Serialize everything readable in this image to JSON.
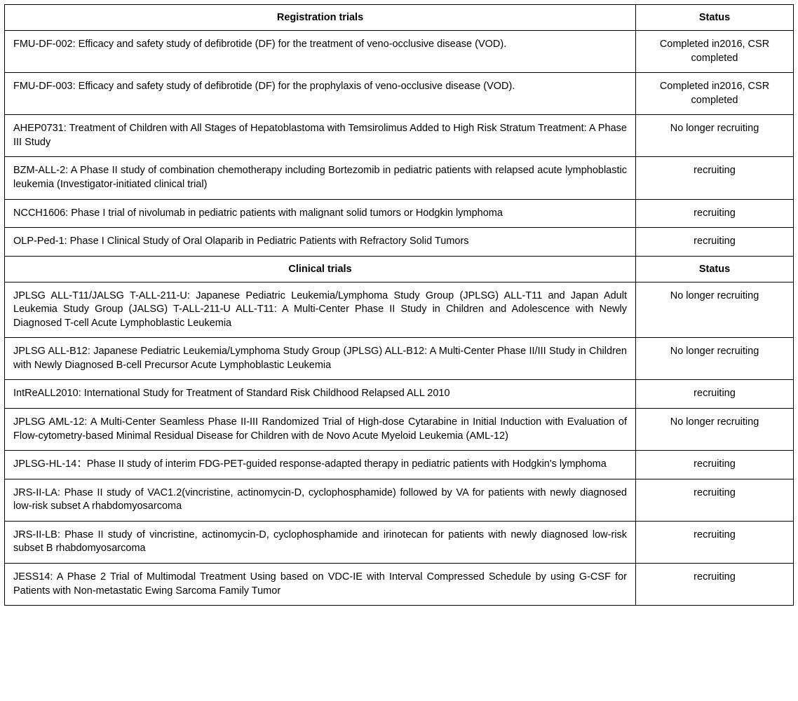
{
  "sections": [
    {
      "header_desc": "Registration trials",
      "header_status": "Status",
      "rows": [
        {
          "desc": "FMU-DF-002: Efficacy and safety study of defibrotide (DF) for the treatment of veno-occlusive disease (VOD).",
          "status": "Completed in2016, CSR completed"
        },
        {
          "desc": "FMU-DF-003: Efficacy and safety study of defibrotide (DF) for the prophylaxis of veno-occlusive disease (VOD).",
          "status": "Completed in2016, CSR completed"
        },
        {
          "desc": "AHEP0731: Treatment of Children with All Stages of Hepatoblastoma with Temsirolimus Added to High Risk Stratum Treatment: A Phase III Study",
          "status": "No longer recruiting"
        },
        {
          "desc": "BZM-ALL-2: A Phase II study of combination chemotherapy including Bortezomib in pediatric patients with relapsed acute lymphoblastic leukemia (Investigator-initiated clinical trial)",
          "status": "recruiting"
        },
        {
          "desc": "NCCH1606: Phase I trial of nivolumab in pediatric patients with malignant solid tumors or Hodgkin lymphoma",
          "status": "recruiting"
        },
        {
          "desc": "OLP-Ped-1: Phase I Clinical Study of Oral Olaparib in Pediatric Patients with Refractory Solid Tumors",
          "status": "recruiting"
        }
      ]
    },
    {
      "header_desc": "Clinical trials",
      "header_status": "Status",
      "rows": [
        {
          "desc": "JPLSG ALL-T11/JALSG T-ALL-211-U: Japanese Pediatric Leukemia/Lymphoma Study Group (JPLSG) ALL-T11 and Japan Adult Leukemia Study Group (JALSG) T-ALL-211-U ALL-T11: A Multi-Center Phase II Study in Children and Adolescence with Newly Diagnosed T-cell Acute Lymphoblastic Leukemia",
          "status": "No longer recruiting"
        },
        {
          "desc": "JPLSG ALL-B12: Japanese Pediatric Leukemia/Lymphoma Study Group (JPLSG) ALL-B12: A Multi-Center Phase II/III Study in Children with Newly Diagnosed B-cell Precursor Acute Lymphoblastic Leukemia",
          "status": "No longer recruiting"
        },
        {
          "desc": "IntReALL2010: International Study for Treatment of Standard Risk Childhood Relapsed ALL 2010",
          "status": "recruiting"
        },
        {
          "desc": "JPLSG AML-12: A Multi-Center Seamless Phase II-III Randomized Trial of High-dose Cytarabine in Initial Induction with Evaluation of Flow-cytometry-based Minimal Residual Disease for Children with de Novo Acute Myeloid Leukemia (AML-12)",
          "status": "No longer recruiting"
        },
        {
          "desc": "JPLSG-HL-14：Phase II study of interim FDG-PET-guided response-adapted therapy in pediatric patients with Hodgkin's lymphoma",
          "status": "recruiting"
        },
        {
          "desc": "JRS-II-LA: Phase II study of VAC1.2(vincristine, actinomycin-D, cyclophosphamide) followed by VA for patients with newly diagnosed low-risk subset A rhabdomyosarcoma",
          "status": "recruiting"
        },
        {
          "desc": "JRS-II-LB: Phase II study of vincristine, actinomycin-D, cyclophosphamide and irinotecan for patients with newly diagnosed low-risk subset B rhabdomyosarcoma",
          "status": "recruiting"
        },
        {
          "desc": "JESS14: A Phase 2 Trial of Multimodal Treatment Using based on VDC-IE with Interval Compressed Schedule by using G-CSF for Patients with Non-metastatic Ewing Sarcoma Family Tumor",
          "status": "recruiting"
        }
      ]
    }
  ]
}
